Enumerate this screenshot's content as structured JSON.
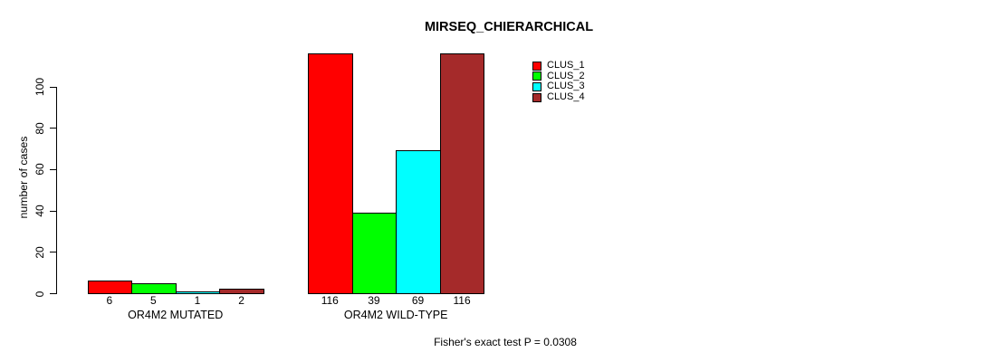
{
  "chart_data": {
    "type": "bar",
    "title": "MIRSEQ_CHIERARCHICAL",
    "ylabel": "number of cases",
    "xlabel": "",
    "categories": [
      "OR4M2 MUTATED",
      "OR4M2 WILD-TYPE"
    ],
    "series": [
      {
        "name": "CLUS_1",
        "color": "#FF0000",
        "values": [
          6,
          116
        ]
      },
      {
        "name": "CLUS_2",
        "color": "#00FF00",
        "values": [
          5,
          39
        ]
      },
      {
        "name": "CLUS_3",
        "color": "#00FFFF",
        "values": [
          1,
          69
        ]
      },
      {
        "name": "CLUS_4",
        "color": "#A52A2A",
        "values": [
          2,
          116
        ]
      }
    ],
    "yticks": [
      0,
      20,
      40,
      60,
      80,
      100
    ],
    "ylim": [
      0,
      118
    ],
    "grid": false,
    "legend_position": "top-right",
    "legend_labels": [
      "CLUS_1",
      "CLUS_2",
      "CLUS_3",
      "CLUS_4"
    ],
    "bar_border_color": "#000000",
    "background_color": "#FFFFFF",
    "annotation": "Fisher's exact test P = 0.0308"
  }
}
